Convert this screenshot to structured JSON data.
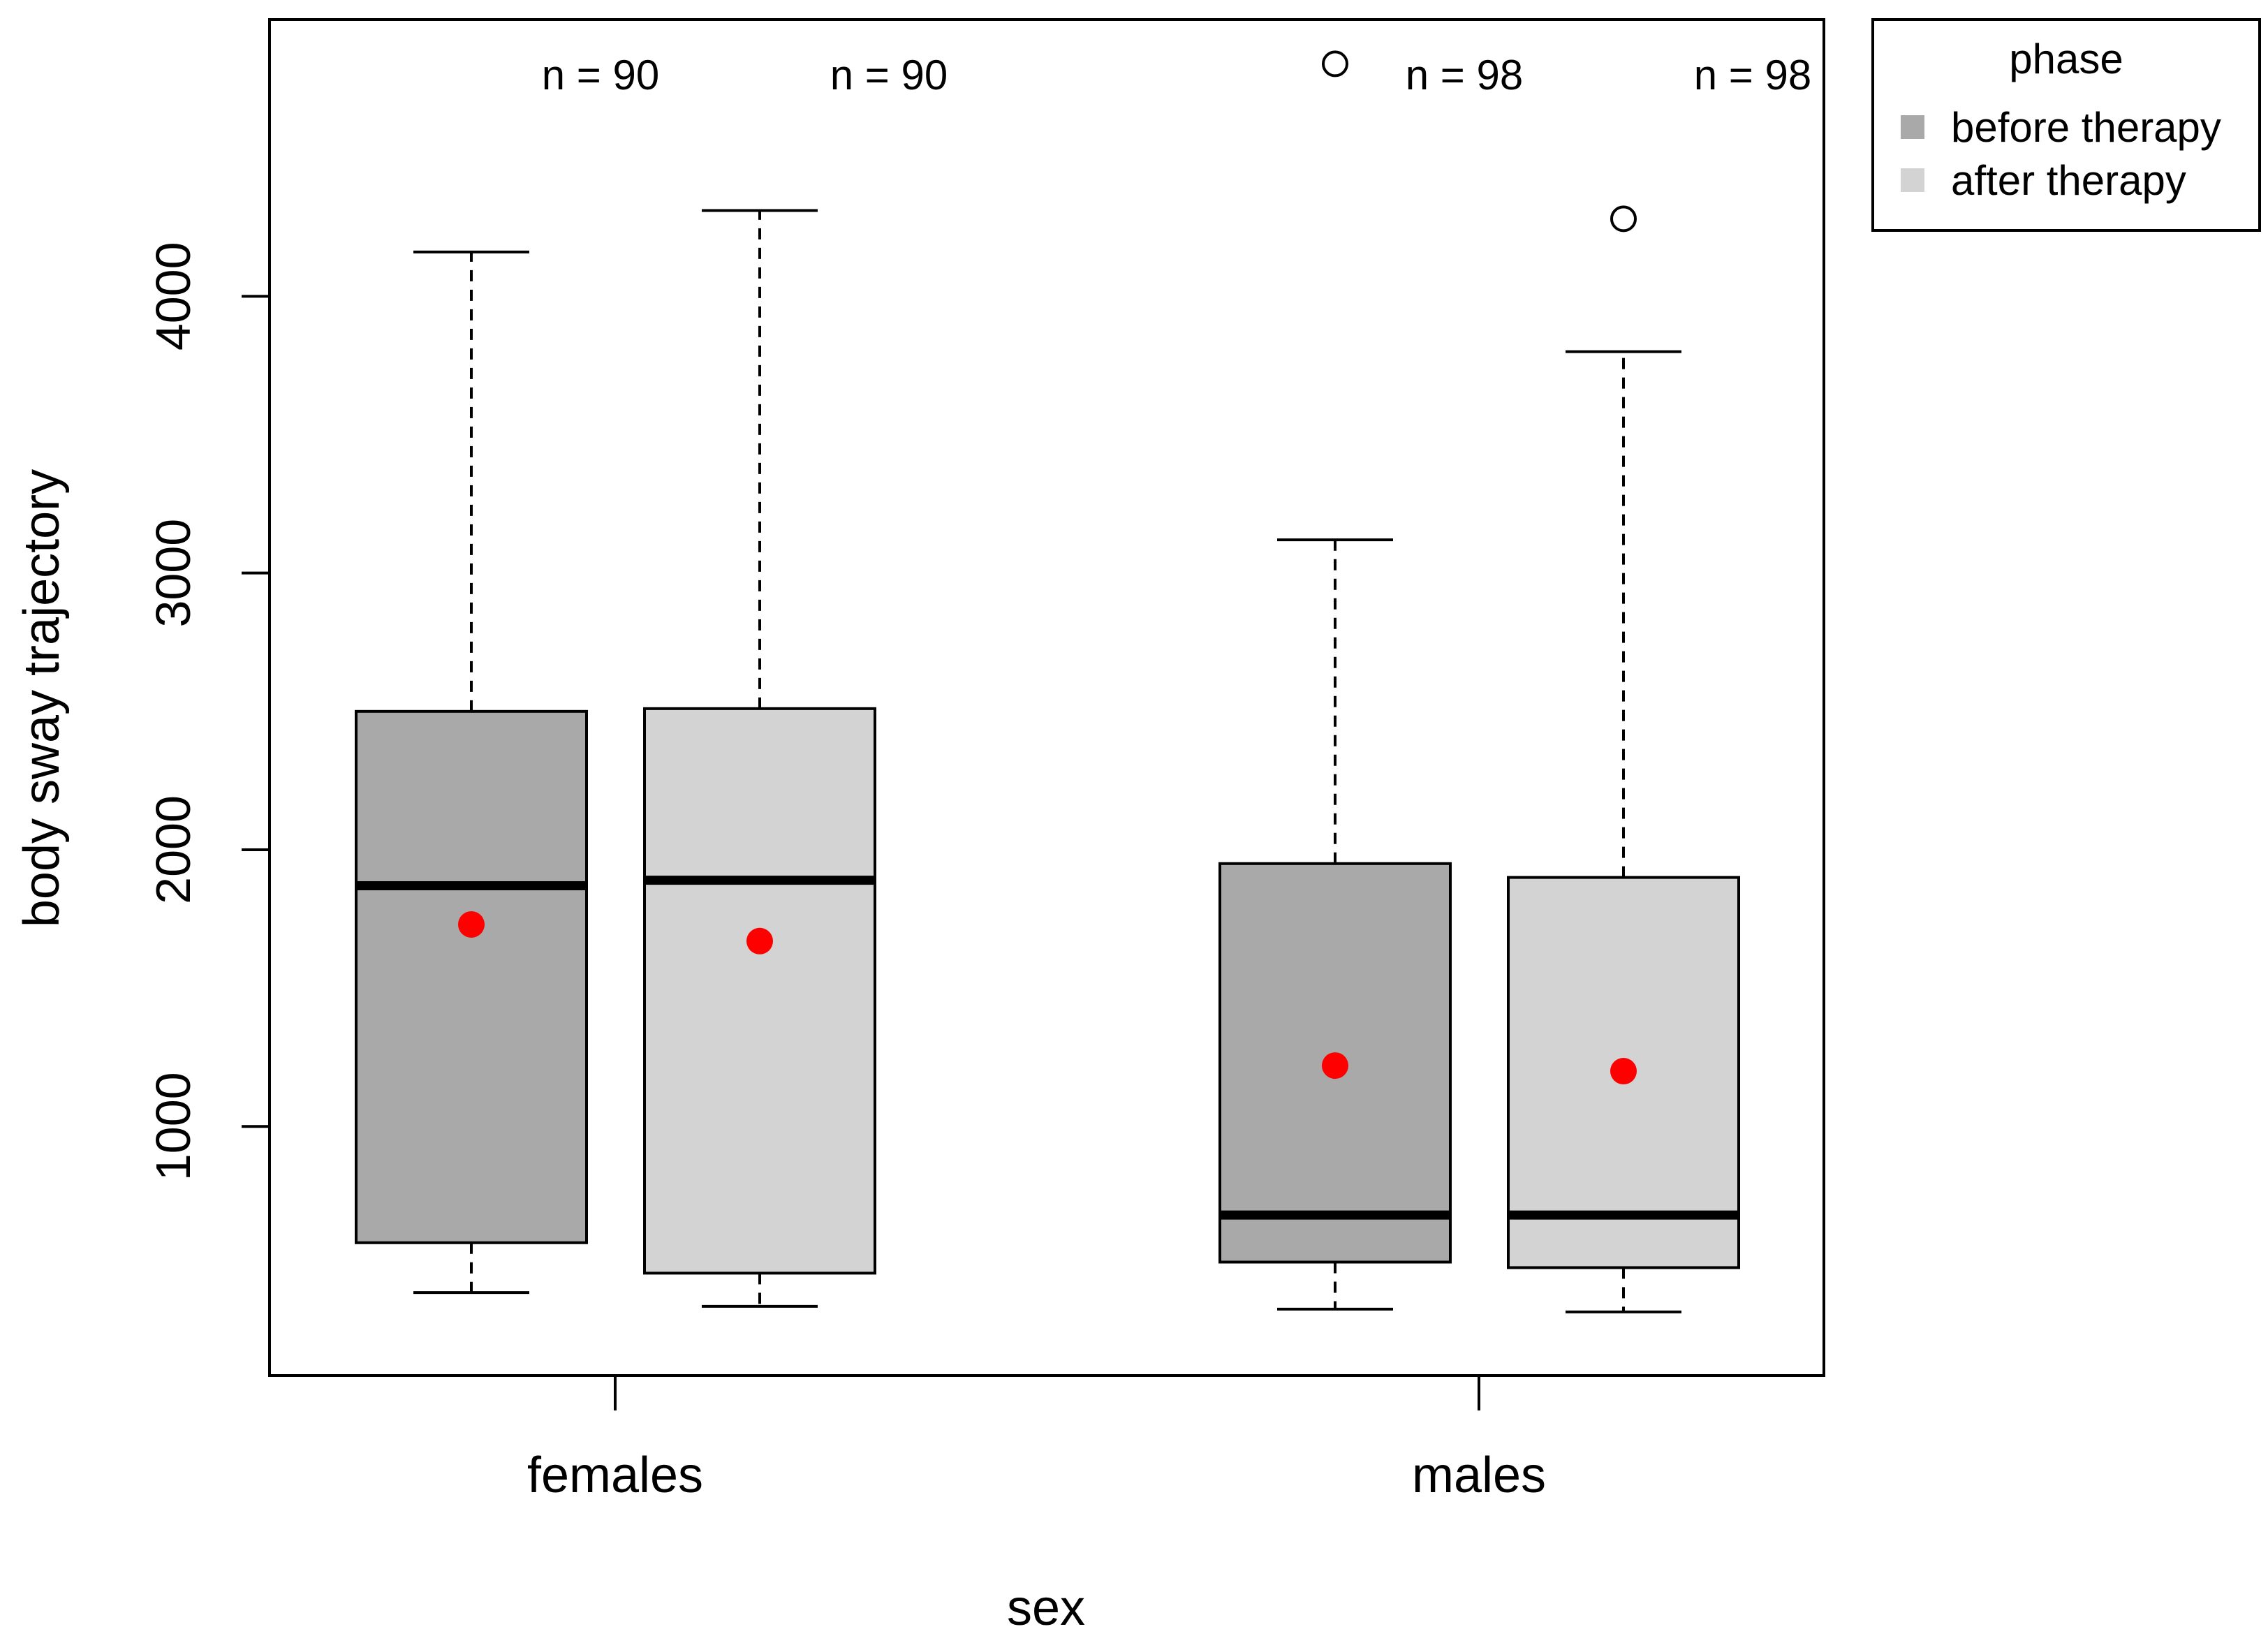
{
  "chart_data": {
    "type": "boxplot",
    "title": "",
    "xlabel": "sex",
    "ylabel": "body sway trajectory",
    "ylim": [
      100,
      5000
    ],
    "yticks": [
      1000,
      2000,
      3000,
      4000
    ],
    "yticks_text": [
      "1000",
      "2000",
      "3000",
      "4000"
    ],
    "categories": [
      "females",
      "males"
    ],
    "legend": {
      "title": "phase",
      "position": "outside-top-right",
      "entries": [
        {
          "label": "before therapy",
          "color": "#a9a9a9"
        },
        {
          "label": "after therapy",
          "color": "#d3d3d3"
        }
      ]
    },
    "mean_color": "#ff0000",
    "boxes": [
      {
        "group": "females",
        "phase": "before therapy",
        "color": "#a9a9a9",
        "whisker_low": 400,
        "q1": 580,
        "median": 1870,
        "q3": 2500,
        "whisker_high": 4160,
        "mean": 1730,
        "outliers": [],
        "n_label": "n = 90"
      },
      {
        "group": "females",
        "phase": "after therapy",
        "color": "#d3d3d3",
        "whisker_low": 350,
        "q1": 470,
        "median": 1890,
        "q3": 2510,
        "whisker_high": 4310,
        "mean": 1670,
        "outliers": [],
        "n_label": "n = 90"
      },
      {
        "group": "males",
        "phase": "before therapy",
        "color": "#a9a9a9",
        "whisker_low": 340,
        "q1": 510,
        "median": 680,
        "q3": 1950,
        "whisker_high": 3120,
        "mean": 1220,
        "outliers": [
          4840
        ],
        "n_label": "n = 98"
      },
      {
        "group": "males",
        "phase": "after therapy",
        "color": "#d3d3d3",
        "whisker_low": 330,
        "q1": 490,
        "median": 680,
        "q3": 1900,
        "whisker_high": 3800,
        "mean": 1200,
        "outliers": [
          4280
        ],
        "n_label": "n = 98"
      }
    ]
  }
}
